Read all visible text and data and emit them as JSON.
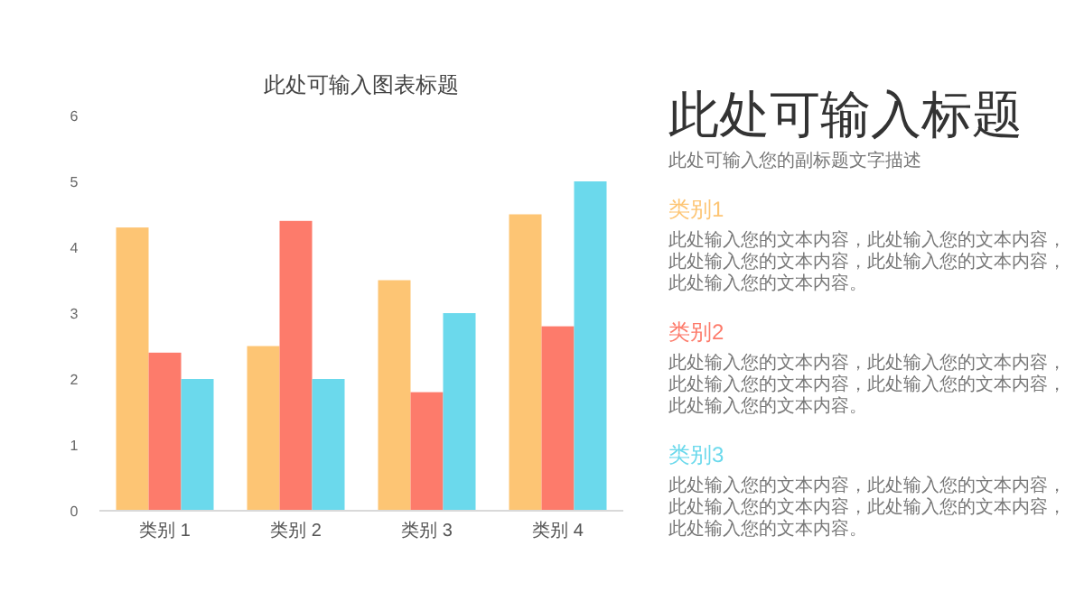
{
  "chart_data": [
    {
      "type": "bar",
      "title": "此处可输入图表标题",
      "categories": [
        "类别 1",
        "类别 2",
        "类别 3",
        "类别 4"
      ],
      "series": [
        {
          "color": "#fdc574",
          "values": [
            4.3,
            2.5,
            3.5,
            4.5
          ]
        },
        {
          "color": "#fd7b6b",
          "values": [
            2.4,
            4.4,
            1.8,
            2.8
          ]
        },
        {
          "color": "#6bd9ec",
          "values": [
            2,
            2,
            3,
            5
          ]
        }
      ],
      "ylim": [
        0,
        6
      ],
      "yticks": [
        0,
        1,
        2,
        3,
        4,
        5,
        6
      ],
      "grid": false
    },
    {
      "type": "other",
      "title": "此处可输入标题",
      "subtitle": "此处可输入您的副标题文字描述",
      "annotations": [
        "类别1",
        "此处输入您的文本内容，此处输入您的文本内容，此处输入您的文本内容，此处输入您的文本内容，此处输入您的文本内容。",
        "类别2",
        "此处输入您的文本内容，此处输入您的文本内容，此处输入您的文本内容，此处输入您的文本内容，此处输入您的文本内容。",
        "类别3",
        "此处输入您的文本内容，此处输入您的文本内容，此处输入您的文本内容，此处输入您的文本内容，此处输入您的文本内容。"
      ]
    }
  ]
}
